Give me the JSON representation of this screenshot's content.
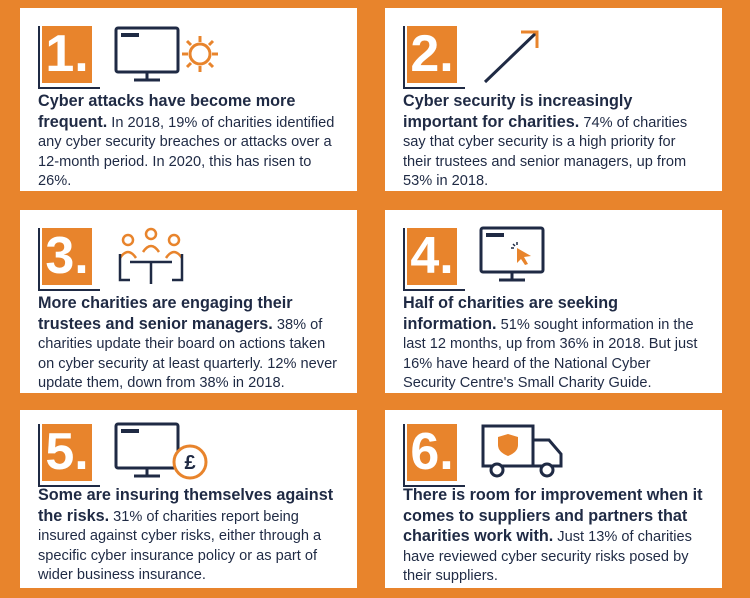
{
  "cards": [
    {
      "number": "1.",
      "icon": "monitor-virus-icon",
      "lead": "Cyber attacks have become more frequent.",
      "text": " In 2018, 19% of charities identified any cyber security breaches or attacks over a 12-month period. In 2020, this has risen to 26%."
    },
    {
      "number": "2.",
      "icon": "trend-up-arrow-icon",
      "lead": "Cyber security is increasingly important for charities.",
      "text": " 74% of charities say that cyber security is a high priority for their trustees and senior managers, up from 53% in 2018."
    },
    {
      "number": "3.",
      "icon": "meeting-icon",
      "lead": "More charities are engaging their trustees and senior managers.",
      "text": " 38% of charities update their board on actions taken on cyber security at least quarterly. 12% never update them, down from 38% in 2018."
    },
    {
      "number": "4.",
      "icon": "monitor-cursor-icon",
      "lead": "Half of charities are seeking information.",
      "text": " 51% sought information in the last 12 months, up from 36% in 2018. But just 16% have heard of the National Cyber Security Centre's Small Charity Guide."
    },
    {
      "number": "5.",
      "icon": "monitor-pound-icon",
      "lead": "Some are insuring themselves against the risks.",
      "text": " 31% of charities report being insured against cyber risks, either through a specific cyber insurance policy or as part of wider business insurance."
    },
    {
      "number": "6.",
      "icon": "delivery-truck-icon",
      "lead": "There is room for improvement when it comes to suppliers and partners that charities work with.",
      "text": " Just 13% of charities have reviewed cyber security risks posed by their suppliers."
    }
  ],
  "colors": {
    "accent": "#e8842c",
    "navy": "#1f2a44",
    "card": "#ffffff"
  },
  "icons": {
    "pound_symbol": "£"
  }
}
